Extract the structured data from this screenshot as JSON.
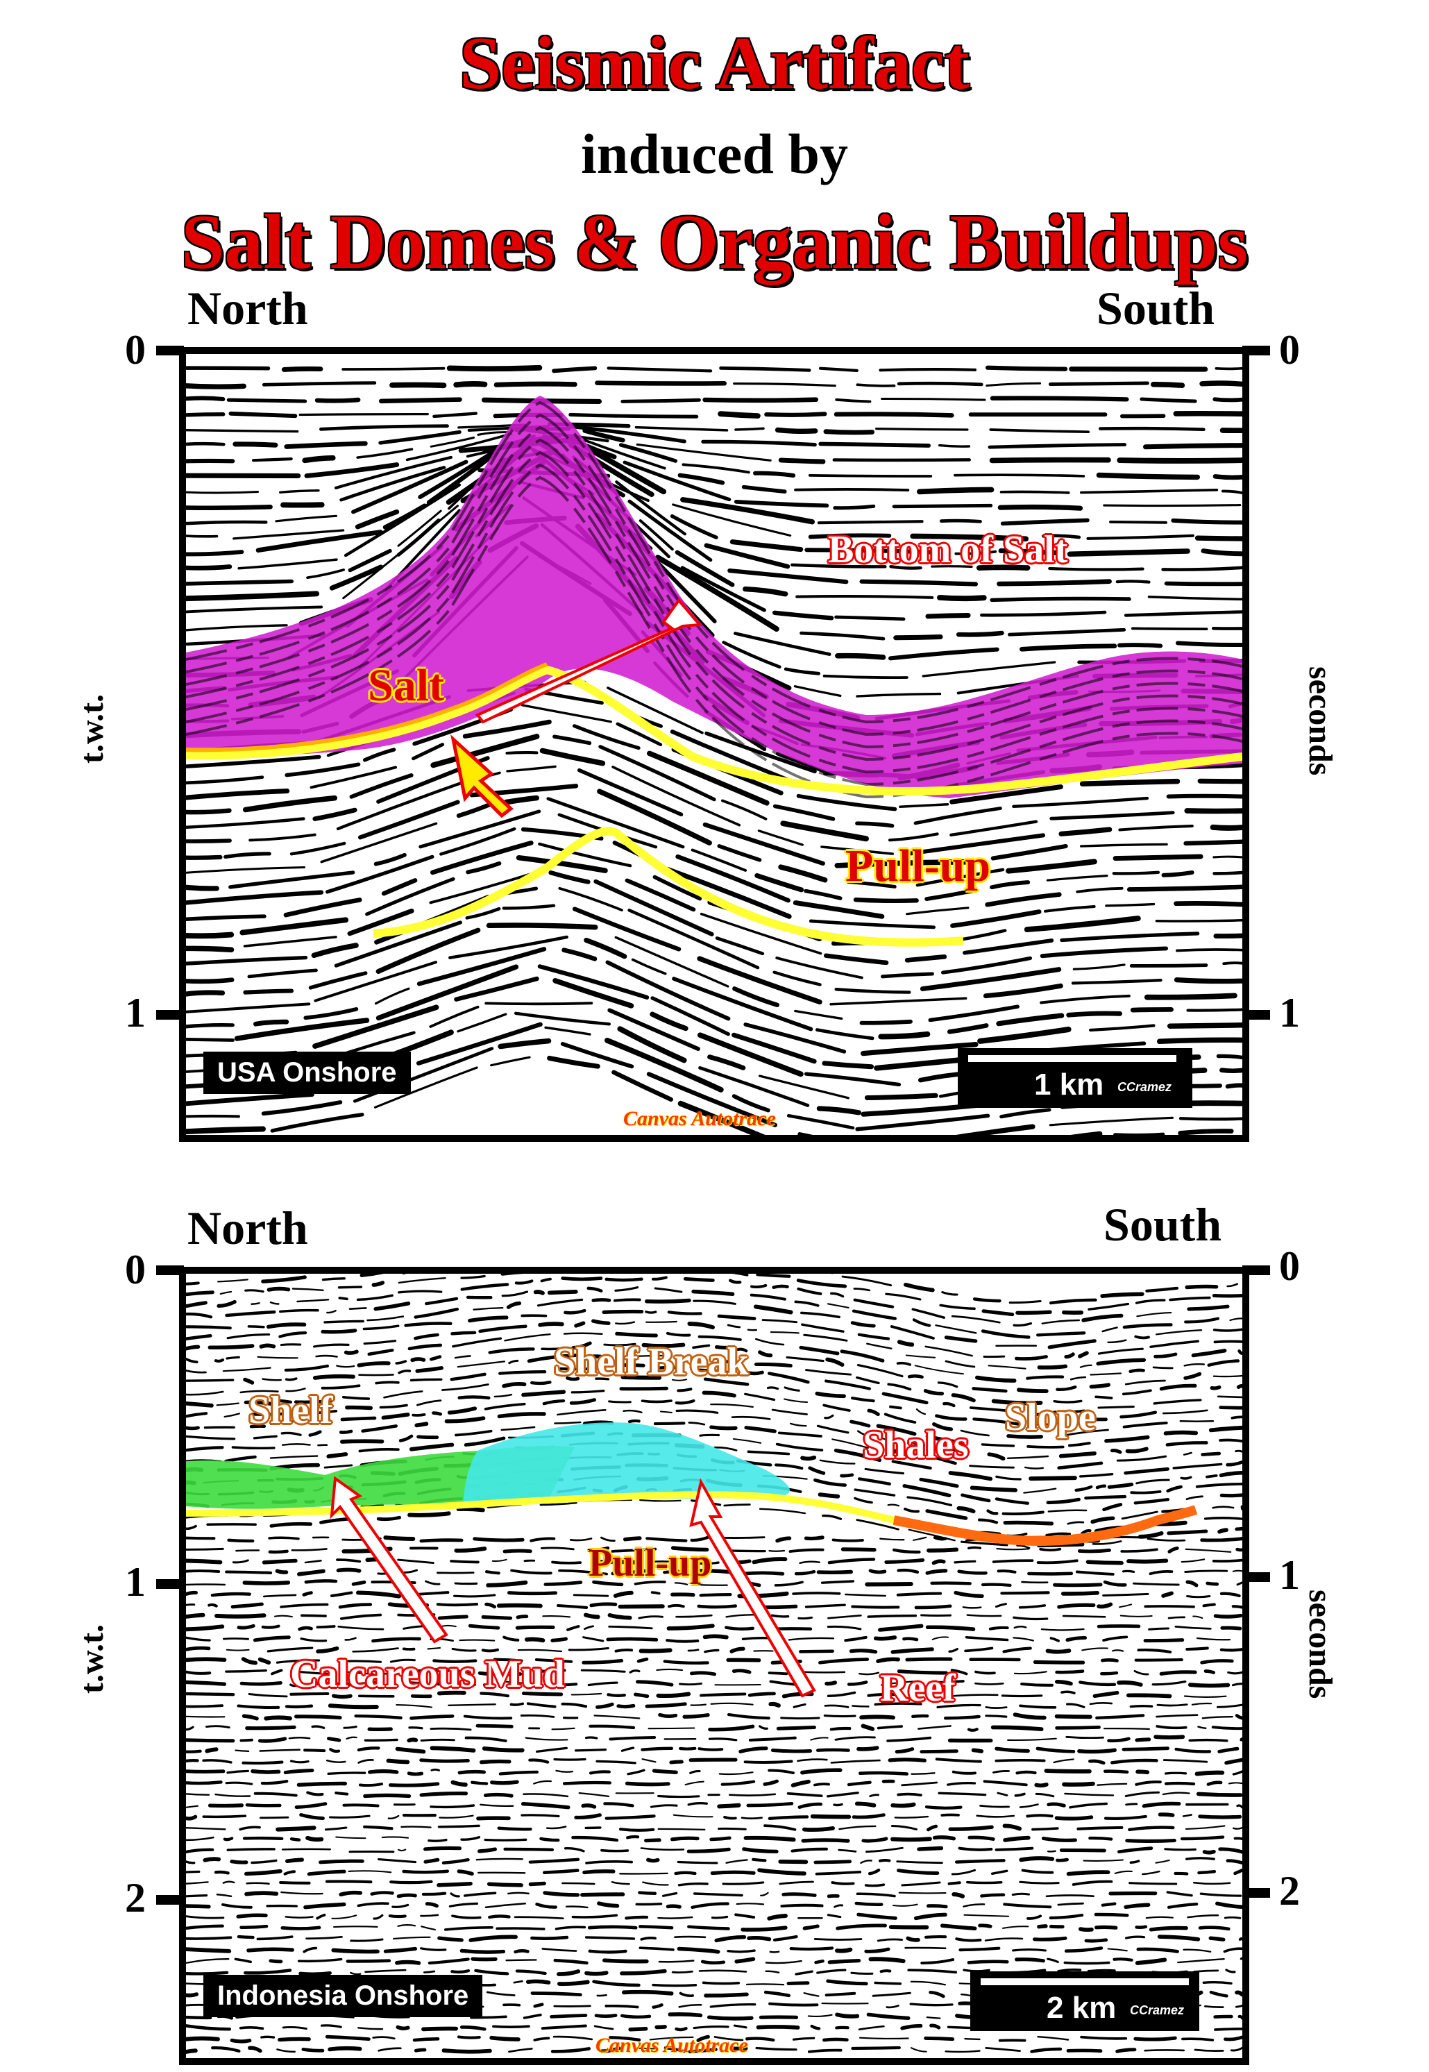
{
  "title": {
    "line1": "Seismic Artifact",
    "line2": "induced by",
    "line3": "Salt Domes & Organic Buildups"
  },
  "top_panel": {
    "left_direction": "North",
    "right_direction": "South",
    "y_ticks": [
      "0",
      "1"
    ],
    "left_axis_label": "t.w.t.",
    "right_axis_label": "seconds",
    "location": "USA Onshore",
    "scale_label": "1 km",
    "author": "CCramez",
    "credit": "Canvas Autotrace",
    "annotations": {
      "salt": "Salt",
      "bottom_of_salt": "Bottom of Salt",
      "pull_up": "Pull-up"
    },
    "colors": {
      "salt": "#d21ed2",
      "horizon": "#ffff33",
      "horizon_top": "#ffb000"
    }
  },
  "bottom_panel": {
    "left_direction": "North",
    "right_direction": "South",
    "y_ticks": [
      "0",
      "1",
      "2"
    ],
    "left_axis_label": "t.w.t.",
    "right_axis_label": "seconds",
    "location": "Indonesia Onshore",
    "scale_label": "2 km",
    "author": "CCramez",
    "credit": "Canvas Autotrace",
    "annotations": {
      "shelf": "Shelf",
      "shelf_break": "Shelf Break",
      "slope": "Slope",
      "shales": "Shales",
      "pull_up": "Pull-up",
      "calcareous_mud": "Calcareous Mud",
      "reef": "Reef"
    },
    "colors": {
      "calcareous_mud": "#3ddc3d",
      "reef": "#44e8e8",
      "horizon": "#ffff33",
      "slope_horizon": "#ff6a10"
    }
  }
}
